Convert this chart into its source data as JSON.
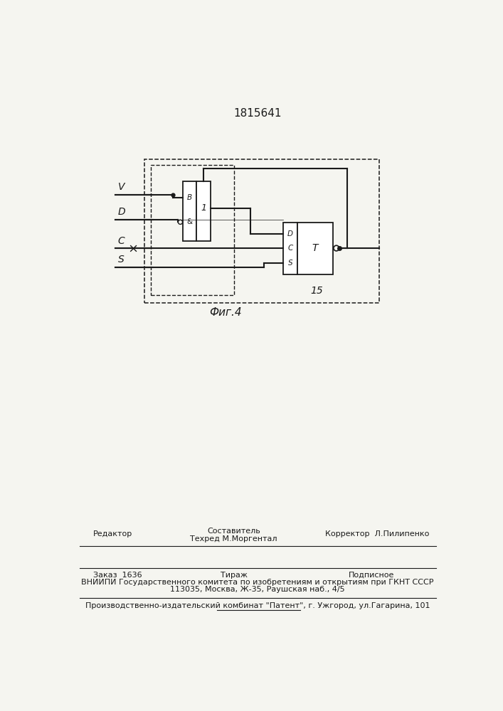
{
  "title": "1815641",
  "fig_label": "Фиг.4",
  "fig_number": "15",
  "bg_color": "#f5f5f0",
  "line_color": "#1a1a1a",
  "text_color": "#1a1a1a",
  "footer_line1_left": "Редактор",
  "footer_sestavitel": "Составитель",
  "footer_tekhred": "Техред М.Моргентал",
  "footer_korrektor": "Корректор  Л.Пилипенко",
  "footer_zakaz": "Заказ  1636",
  "footer_tirazh": "Тираж",
  "footer_podpisnoe": "Подписное",
  "footer_line3": "ВНИИПИ Государственного комитета по изобретениям и открытиям при ГКНТ СССР",
  "footer_line4": "113035, Москва, Ж-35, Раушская наб., 4/5",
  "footer_line5": "Производственно-издательский комбинат \"Патент\", г. Ужгород, ул.Гагарина, 101"
}
